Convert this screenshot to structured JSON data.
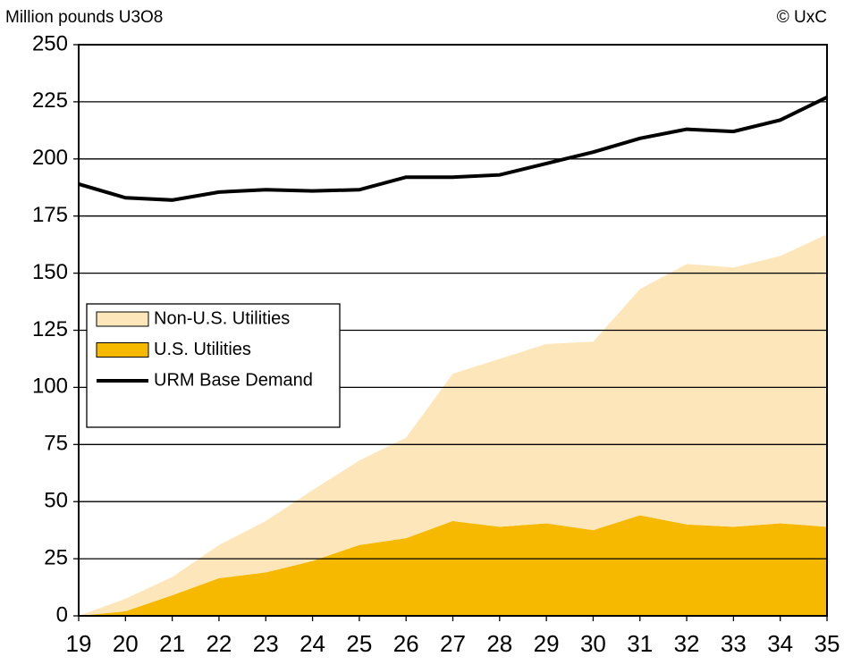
{
  "chart_data": {
    "type": "stacked_area_line",
    "title": "Million pounds U3O8",
    "source": "© UxC",
    "categories": [
      "19",
      "20",
      "21",
      "22",
      "23",
      "24",
      "25",
      "26",
      "27",
      "28",
      "29",
      "30",
      "31",
      "32",
      "33",
      "34",
      "35"
    ],
    "series": [
      {
        "name": "Non-U.S. Utilities",
        "color": "#fde7ba",
        "kind": "area",
        "values": [
          0,
          5.5,
          8,
          14.5,
          22.5,
          31,
          37,
          44,
          64.5,
          73.5,
          78.5,
          82.5,
          99,
          114,
          113.5,
          117,
          128
        ]
      },
      {
        "name": "U.S. Utilities",
        "color": "#f7b900",
        "kind": "area",
        "values": [
          0,
          2,
          9,
          16.5,
          19,
          24,
          31,
          34,
          41.5,
          39,
          40.5,
          37.5,
          44,
          40,
          39,
          40.5,
          39
        ]
      },
      {
        "name": "URM Base Demand",
        "color": "#000000",
        "kind": "line",
        "values": [
          189,
          183,
          182,
          185.5,
          186.5,
          186,
          186.5,
          192,
          192,
          193,
          198,
          203,
          209,
          213,
          212,
          217,
          227
        ]
      }
    ],
    "ylim": [
      0,
      250
    ],
    "yticks": [
      0,
      25,
      50,
      75,
      100,
      125,
      150,
      175,
      200,
      225,
      250
    ],
    "grid": true
  }
}
